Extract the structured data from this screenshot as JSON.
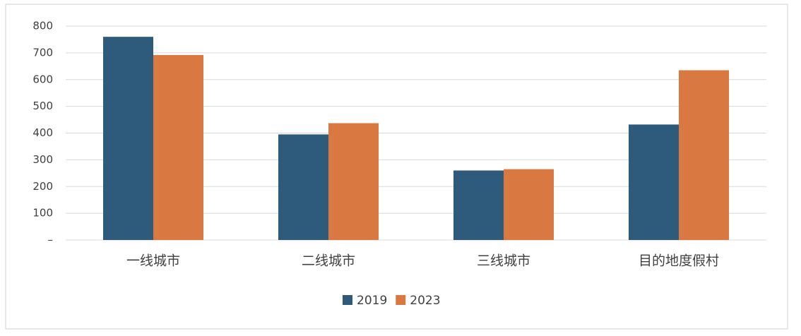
{
  "chart_data": {
    "type": "bar",
    "categories": [
      "一线城市",
      "二线城市",
      "三线城市",
      "目的地度假村"
    ],
    "series": [
      {
        "name": "2019",
        "color": "#2e5b7b",
        "values": [
          760,
          395,
          260,
          432
        ]
      },
      {
        "name": "2023",
        "color": "#d97941",
        "values": [
          692,
          437,
          265,
          635
        ]
      }
    ],
    "ylim": [
      0,
      800
    ],
    "yticks": [
      {
        "value": 0,
        "label": "–"
      },
      100,
      200,
      300,
      400,
      500,
      600,
      700,
      800
    ],
    "grid": true,
    "legend": "bottom"
  }
}
